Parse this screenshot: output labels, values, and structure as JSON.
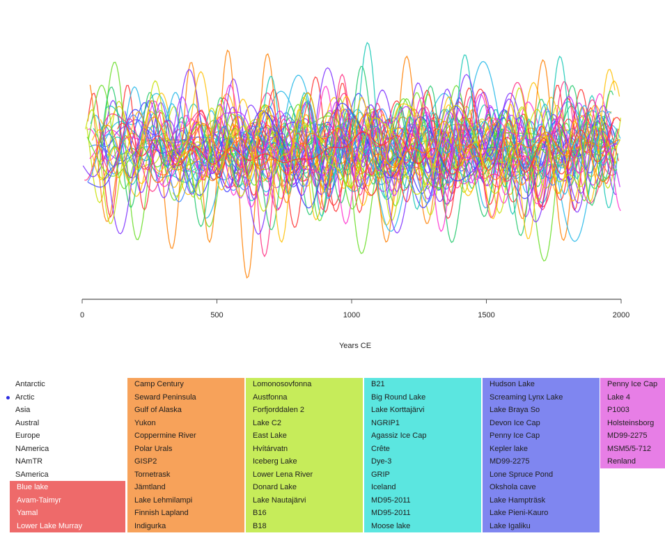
{
  "chart_data": {
    "type": "line",
    "xlabel": "Years CE",
    "ylabel": "",
    "xlim": [
      0,
      2000
    ],
    "ylim": [
      -3.2,
      3.2
    ],
    "x_ticks": [
      0,
      500,
      1000,
      1500,
      2000
    ],
    "x_tick_labels": [
      "0",
      "500",
      "1000",
      "1500",
      "2000"
    ],
    "grid": false,
    "legend": "none",
    "series_count": 60,
    "palette": [
      "#ff2b2b",
      "#ff7f00",
      "#ffbf00",
      "#c7e000",
      "#66dd22",
      "#1ec86a",
      "#12c7b4",
      "#1fb6e8",
      "#3a86ff",
      "#3a3aff",
      "#7a2cff",
      "#c02cff",
      "#ff2ccf",
      "#ff2c80"
    ],
    "series_note_source": "60 overlapping proxy records, standardized values between about -3 and 3"
  },
  "regions": [
    {
      "label": "Antarctic"
    },
    {
      "label": "Arctic",
      "selected": true
    },
    {
      "label": "Asia"
    },
    {
      "label": "Austral"
    },
    {
      "label": "Europe"
    },
    {
      "label": "NAmerica"
    },
    {
      "label": "NAmTR"
    },
    {
      "label": "SAmerica"
    }
  ],
  "sites": [
    {
      "color": "#ee6a6a",
      "text": "#ffffff",
      "items": [
        "Blue lake",
        "Avam-Taimyr",
        "Yamal",
        "Lower Lake Murray"
      ],
      "offset_rows": 8
    },
    {
      "color": "#f7a25a",
      "items": [
        "Camp Century",
        "Seward Peninsula",
        "Gulf of Alaska",
        "Yukon",
        "Coppermine River",
        "Polar Urals",
        "GISP2",
        "Tornetrask",
        "Jämtland",
        "Lake Lehmilampi",
        "Finnish Lapland",
        "Indigurka"
      ]
    },
    {
      "color": "#c6ec5a",
      "items": [
        "Lomonosovfonna",
        "Austfonna",
        "Forfjorddalen 2",
        "Lake C2",
        "East Lake",
        "Hvítárvatn",
        "Iceberg Lake",
        "Lower Lena River",
        "Donard Lake",
        "Lake Nautajärvi",
        "B16",
        "B18"
      ]
    },
    {
      "color": "#5be6e0",
      "items": [
        "B21",
        "Big Round Lake",
        "Lake Korttajärvi",
        "NGRIP1",
        "Agassiz Ice Cap",
        "Crête",
        "Dye-3",
        "GRIP",
        "Iceland",
        "MD95-2011",
        "MD95-2011",
        "Moose lake"
      ]
    },
    {
      "color": "#7f86f0",
      "items": [
        "Hudson Lake",
        "Screaming Lynx Lake",
        "Lake Braya So",
        "Devon Ice Cap",
        "Penny Ice Cap",
        "Kepler lake",
        "MD99-2275",
        "Lone Spruce Pond",
        "Okshola cave",
        "Lake Hampträsk",
        "Lake Pieni-Kauro",
        "Lake Igaliku"
      ]
    },
    {
      "color": "#e77ee6",
      "items": [
        "Penny Ice Cap",
        "Lake 4",
        "P1003",
        "Holsteinsborg",
        "MD99-2275",
        "MSM5/5-712",
        "Renland"
      ]
    }
  ]
}
